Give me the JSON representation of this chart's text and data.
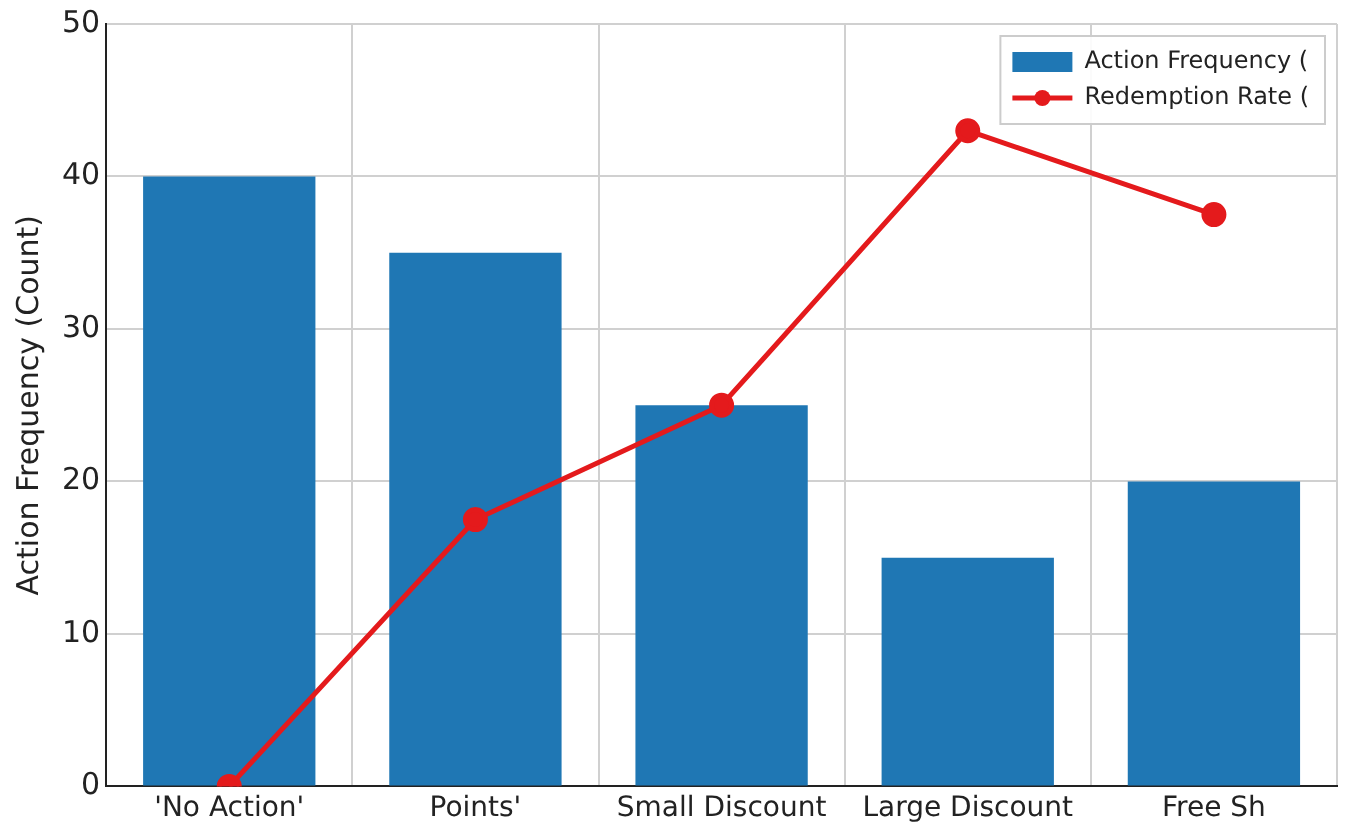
{
  "chart_data": {
    "type": "bar",
    "ylabel": "Action Frequency (Count)",
    "categories": [
      "'No Action'",
      "Points'",
      "Small Discount",
      "Large Discount",
      "Free Sh"
    ],
    "series": [
      {
        "name": "Action Frequency (",
        "color": "#1f77b4",
        "values": [
          40,
          35,
          25,
          15,
          20
        ]
      },
      {
        "type": "line",
        "name": "Redemption Rate (",
        "color": "#e41a1c",
        "values": [
          0,
          17.5,
          25,
          43,
          37.5
        ],
        "marker": "circle"
      }
    ],
    "ylim": [
      0,
      50
    ],
    "yticks": [
      0,
      10,
      20,
      30,
      40,
      50
    ],
    "grid": true,
    "legend": "top right"
  }
}
